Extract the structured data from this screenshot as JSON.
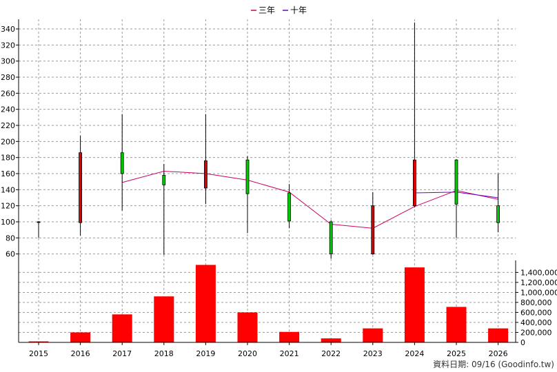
{
  "legend": {
    "items": [
      {
        "label": "三年",
        "color": "#cc0066"
      },
      {
        "label": "十年",
        "color": "#6600cc"
      }
    ]
  },
  "footer": {
    "text": "資料日期: 09/16  (Goodinfo.tw)"
  },
  "chart_data": {
    "type": "candlestick",
    "categories": [
      "2015",
      "2016",
      "2017",
      "2018",
      "2019",
      "2020",
      "2021",
      "2022",
      "2023",
      "2024",
      "2025",
      "2026"
    ],
    "price_axis": {
      "ylim": [
        52,
        352
      ],
      "ticks": [
        60,
        80,
        100,
        120,
        140,
        160,
        180,
        200,
        220,
        240,
        260,
        280,
        300,
        320,
        340
      ]
    },
    "volume_axis": {
      "ylim": [
        0,
        1640000
      ],
      "ticks": [
        0,
        200000,
        400000,
        600000,
        800000,
        1000000,
        1200000,
        1400000
      ],
      "tick_labels": [
        "0",
        "200,000",
        "400,000",
        "600,000",
        "800,000",
        "1,000,000",
        "1,200,000",
        "1,400,000"
      ]
    },
    "candles": [
      {
        "year": "2015",
        "open": 100,
        "close": 100,
        "high": 101,
        "low": 80
      },
      {
        "year": "2016",
        "open": 99,
        "close": 186,
        "high": 207,
        "low": 83
      },
      {
        "year": "2017",
        "open": 186,
        "close": 160,
        "high": 234,
        "low": 114
      },
      {
        "year": "2018",
        "open": 158,
        "close": 146,
        "high": 172,
        "low": 59
      },
      {
        "year": "2019",
        "open": 142,
        "close": 176,
        "high": 234,
        "low": 122
      },
      {
        "year": "2020",
        "open": 177,
        "close": 135,
        "high": 182,
        "low": 86
      },
      {
        "year": "2021",
        "open": 136,
        "close": 101,
        "high": 147,
        "low": 92
      },
      {
        "year": "2022",
        "open": 100,
        "close": 60,
        "high": 102,
        "low": 54
      },
      {
        "year": "2023",
        "open": 60,
        "close": 120,
        "high": 137,
        "low": 59
      },
      {
        "year": "2024",
        "open": 120,
        "close": 177,
        "high": 348,
        "low": 118
      },
      {
        "year": "2025",
        "open": 177,
        "close": 122,
        "high": 178,
        "low": 80
      },
      {
        "year": "2026",
        "open": 120,
        "close": 99,
        "high": 160,
        "low": 87
      }
    ],
    "volumes": [
      20000,
      200000,
      560000,
      920000,
      1550000,
      600000,
      210000,
      80000,
      280000,
      1500000,
      710000,
      280000
    ],
    "series": [
      {
        "name": "三年",
        "color": "#cc0066",
        "points": [
          [
            "2017",
            149
          ],
          [
            "2018",
            163
          ],
          [
            "2019",
            160
          ],
          [
            "2020",
            152
          ],
          [
            "2021",
            137
          ],
          [
            "2022",
            97
          ],
          [
            "2023",
            92
          ],
          [
            "2024",
            119
          ],
          [
            "2025",
            139
          ],
          [
            "2026",
            128
          ]
        ]
      },
      {
        "name": "十年",
        "color": "#6600cc",
        "points": [
          [
            "2024",
            136
          ],
          [
            "2025",
            137
          ],
          [
            "2026",
            130
          ]
        ]
      }
    ],
    "grid": true,
    "legend_position": "top-center"
  }
}
